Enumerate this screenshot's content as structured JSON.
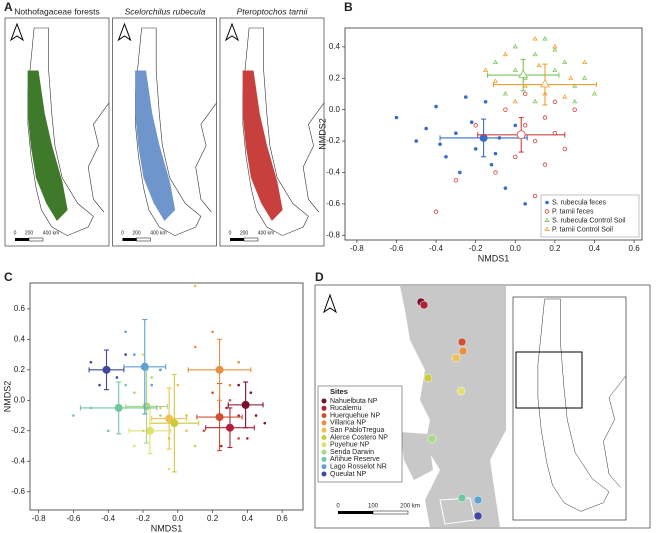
{
  "panel_labels": [
    "A",
    "B",
    "C",
    "D"
  ],
  "map_a": {
    "titles": [
      "Nothofagaceae forests",
      "Scelorchilus rubecula",
      "Pteroptochos tarnii"
    ],
    "colors": [
      "#3f7a2a",
      "#6e96cc",
      "#c8403e"
    ],
    "scale_labels": [
      "0",
      "200",
      "400 km"
    ]
  },
  "map_d": {
    "legend_title": "Sites",
    "scale_labels": [
      "0",
      "100",
      "200 km"
    ]
  },
  "chart_data": [
    {
      "type": "scatter",
      "xlabel": "NMDS1",
      "ylabel": "NMDS2",
      "xlim": [
        -0.86,
        0.64
      ],
      "ylim": [
        -0.83,
        0.52
      ],
      "xticks": [
        -0.8,
        -0.6,
        -0.4,
        -0.2,
        {
          "value": 0,
          "label": "0.0"
        },
        0.2,
        0.4,
        0.6
      ],
      "yticks": [
        -0.8,
        -0.6,
        -0.4,
        -0.2,
        {
          "value": 0,
          "label": "0.0"
        },
        0.2,
        0.4
      ],
      "legend": "bottom-right",
      "series": [
        {
          "name": "S. rubecula feces",
          "color": "#3a6cc6",
          "marker": "circle-filled",
          "x": [
            -0.6,
            -0.5,
            -0.45,
            -0.4,
            -0.35,
            -0.3,
            -0.28,
            -0.22,
            -0.2,
            -0.15,
            -0.12,
            -0.08,
            -0.05,
            0,
            0.05,
            -0.25,
            -0.1,
            -0.38
          ],
          "values": [
            -0.05,
            -0.2,
            -0.12,
            0.02,
            -0.3,
            -0.15,
            -0.4,
            -0.08,
            -0.25,
            0.05,
            -0.35,
            -0.18,
            -0.5,
            -0.1,
            -0.6,
            0.08,
            -0.28,
            -0.22
          ],
          "centroid": {
            "x": -0.16,
            "y": -0.18,
            "xerr": 0.22,
            "yerr": 0.12
          }
        },
        {
          "name": "P. tarnii feces",
          "color": "#d0403e",
          "marker": "circle-open",
          "x": [
            -0.2,
            -0.1,
            0,
            0.05,
            0.1,
            0.15,
            0.2,
            0.25,
            0.3,
            -0.05,
            0.1,
            0.2,
            -0.3,
            0.15,
            0.05,
            -0.4
          ],
          "values": [
            -0.1,
            -0.4,
            -0.3,
            0.1,
            -0.2,
            -0.05,
            -0.15,
            -0.25,
            0,
            0,
            -0.55,
            0.05,
            -0.45,
            -0.35,
            -0.1,
            -0.65
          ],
          "centroid": {
            "x": 0.03,
            "y": -0.16,
            "xerr": 0.22,
            "yerr": 0.11
          }
        },
        {
          "name": "S. rubecula Control Soil",
          "color": "#7cc45a",
          "marker": "triangle-open",
          "x": [
            -0.1,
            0,
            0.05,
            0.1,
            0.15,
            0.2,
            0.25,
            0.3,
            0.35,
            -0.05,
            0.1,
            0.2,
            0.3,
            0.4,
            0
          ],
          "values": [
            0.3,
            0.4,
            0.2,
            0.35,
            0.45,
            0.25,
            0.3,
            0.15,
            0.2,
            0.1,
            0.05,
            0.38,
            0.05,
            0.1,
            0.25
          ],
          "centroid": {
            "x": 0.04,
            "y": 0.22,
            "xerr": 0.18,
            "yerr": 0.1
          }
        },
        {
          "name": "P. tarnii Control Soil",
          "color": "#f0a030",
          "marker": "triangle-open",
          "x": [
            -0.15,
            -0.05,
            0.05,
            0.12,
            0.2,
            0.28,
            0.35,
            0,
            0.15,
            0.25,
            -0.1,
            0.1
          ],
          "values": [
            0.25,
            0.35,
            0.15,
            0.28,
            0.4,
            0.2,
            0.3,
            0.05,
            0.1,
            0.08,
            0.18,
            0.45
          ],
          "centroid": {
            "x": 0.15,
            "y": 0.16,
            "xerr": 0.26,
            "yerr": 0.13
          }
        }
      ]
    },
    {
      "type": "scatter",
      "xlabel": "NMDS1",
      "ylabel": "NMDS2",
      "marker": "circle-filled",
      "xlim": [
        -0.85,
        0.72
      ],
      "ylim": [
        -0.72,
        0.77
      ],
      "xticks": [
        -0.8,
        -0.6,
        -0.4,
        -0.2,
        {
          "value": 0,
          "label": "0.0"
        },
        0.2,
        0.4,
        0.6
      ],
      "yticks": [
        -0.6,
        -0.4,
        -0.2,
        {
          "value": 0,
          "label": "0.0"
        },
        0.2,
        0.4,
        0.6
      ],
      "series": [
        {
          "name": "Nahuelbuta NP",
          "color": "#7a1030",
          "x": [
            0.35,
            0.45,
            0.42,
            0.5
          ],
          "values": [
            0.1,
            -0.1,
            0.05,
            -0.15
          ],
          "centroid": {
            "x": 0.39,
            "y": -0.03,
            "xerr": 0.1,
            "yerr": 0.15
          }
        },
        {
          "name": "Rucalemu",
          "color": "#b0203a",
          "x": [
            0.25,
            0.35,
            0.4,
            0.28
          ],
          "values": [
            -0.3,
            -0.1,
            -0.25,
            -0.05
          ],
          "centroid": {
            "x": 0.3,
            "y": -0.18,
            "xerr": 0.14,
            "yerr": 0.13
          }
        },
        {
          "name": "Huerquehue NP",
          "color": "#d05030",
          "x": [
            0.15,
            0.3,
            0.2,
            0.35
          ],
          "values": [
            -0.2,
            0,
            0.05,
            -0.25
          ],
          "centroid": {
            "x": 0.24,
            "y": -0.11,
            "xerr": 0.13,
            "yerr": 0.22
          }
        },
        {
          "name": "Villarica NP",
          "color": "#e89040",
          "x": [
            0.1,
            0.3,
            0.35,
            0.2
          ],
          "values": [
            0.35,
            0.1,
            0.25,
            0.45
          ],
          "centroid": {
            "x": 0.24,
            "y": 0.2,
            "xerr": 0.18,
            "yerr": 0.2
          }
        },
        {
          "name": "San PabloTregua",
          "color": "#f0c050",
          "x": [
            -0.1,
            0.05,
            0,
            0.1
          ],
          "values": [
            -0.05,
            -0.2,
            0.1,
            0.75
          ],
          "centroid": {
            "x": -0.05,
            "y": -0.12,
            "xerr": 0.1,
            "yerr": 0.2
          }
        },
        {
          "name": "Alerce Costero NP",
          "color": "#c8cc3a",
          "x": [
            -0.05,
            0.05,
            -0.1,
            0.1
          ],
          "values": [
            -0.25,
            -0.1,
            0.2,
            -0.3
          ],
          "centroid": {
            "x": -0.02,
            "y": -0.15,
            "xerr": 0.14,
            "yerr": 0.32
          }
        },
        {
          "name": "Puyehue NP",
          "color": "#e0e070",
          "x": [
            -0.25,
            -0.1,
            -0.2,
            -0.05
          ],
          "values": [
            -0.3,
            -0.1,
            0.3,
            -0.45
          ],
          "centroid": {
            "x": -0.16,
            "y": -0.2,
            "xerr": 0.12,
            "yerr": 0.15
          }
        },
        {
          "name": "Senda Darwin",
          "color": "#a8d880",
          "x": [
            -0.25,
            -0.1,
            -0.2,
            -0.15
          ],
          "values": [
            0.05,
            -0.1,
            -0.2,
            0.15
          ],
          "centroid": {
            "x": -0.18,
            "y": -0.04,
            "xerr": 0.12,
            "yerr": 0.24
          }
        },
        {
          "name": "Añihue Reserve",
          "color": "#70c8a0",
          "x": [
            -0.5,
            -0.3,
            -0.4,
            -0.6
          ],
          "values": [
            -0.05,
            0.1,
            -0.2,
            -0.1
          ],
          "centroid": {
            "x": -0.34,
            "y": -0.05,
            "xerr": 0.22,
            "yerr": 0.17
          }
        },
        {
          "name": "Lago Rosselot NR",
          "color": "#5ea0d0",
          "x": [
            -0.25,
            -0.15,
            -0.3,
            -0.1
          ],
          "values": [
            0.3,
            0.1,
            0.45,
            0.2
          ],
          "centroid": {
            "x": -0.19,
            "y": 0.22,
            "xerr": 0.12,
            "yerr": 0.31
          }
        },
        {
          "name": "Queulat NP",
          "color": "#3f48a0",
          "x": [
            -0.5,
            -0.35,
            -0.45,
            -0.3
          ],
          "values": [
            0.25,
            0.15,
            0.1,
            0.3
          ],
          "centroid": {
            "x": -0.41,
            "y": 0.2,
            "xerr": 0.1,
            "yerr": 0.13
          }
        }
      ]
    }
  ]
}
